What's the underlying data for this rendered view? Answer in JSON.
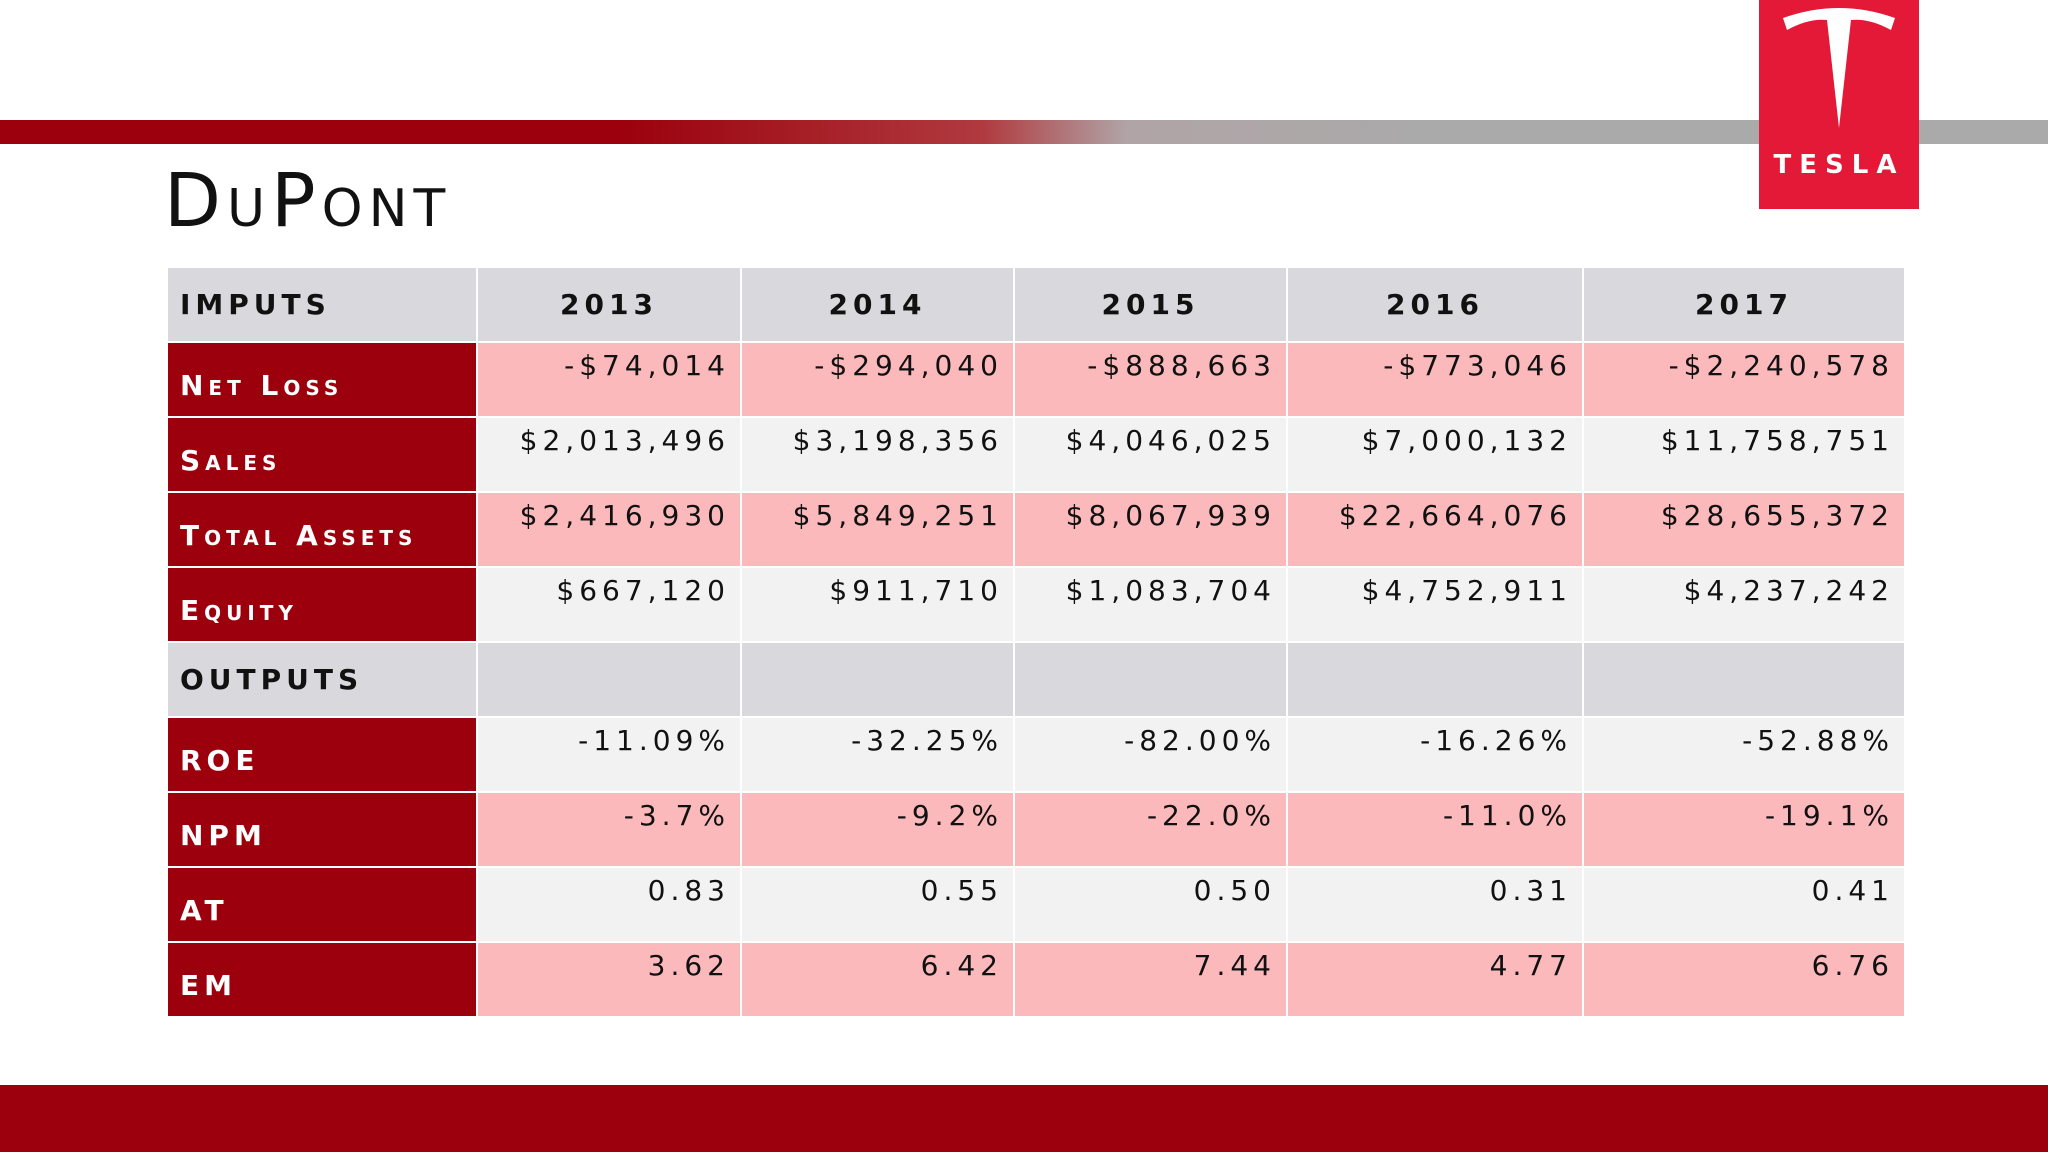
{
  "title": "DuPont",
  "logo": {
    "text": "TESLA"
  },
  "table": {
    "header": [
      "IMPUTS",
      "2013",
      "2014",
      "2015",
      "2016",
      "2017"
    ],
    "rows": [
      {
        "label": "Net Loss",
        "values": [
          "-$74,014",
          "-$294,040",
          "-$888,663",
          "-$773,046",
          "-$2,240,578"
        ]
      },
      {
        "label": "Sales",
        "values": [
          "$2,013,496",
          "$3,198,356",
          "$4,046,025",
          "$7,000,132",
          "$11,758,751"
        ]
      },
      {
        "label": "Total Assets",
        "values": [
          "$2,416,930",
          "$5,849,251",
          "$8,067,939",
          "$22,664,076",
          "$28,655,372"
        ]
      },
      {
        "label": "Equity",
        "values": [
          "$667,120",
          "$911,710",
          "$1,083,704",
          "$4,752,911",
          "$4,237,242"
        ]
      },
      {
        "label": "OUTPUTS"
      },
      {
        "label": "ROE",
        "values": [
          "-11.09%",
          "-32.25%",
          "-82.00%",
          "-16.26%",
          "-52.88%"
        ]
      },
      {
        "label": "NPM",
        "values": [
          "-3.7%",
          "-9.2%",
          "-22.0%",
          "-11.0%",
          "-19.1%"
        ]
      },
      {
        "label": "AT",
        "values": [
          "0.83",
          "0.55",
          "0.50",
          "0.31",
          "0.41"
        ]
      },
      {
        "label": "EM",
        "values": [
          "3.62",
          "6.42",
          "7.44",
          "4.77",
          "6.76"
        ]
      }
    ]
  }
}
